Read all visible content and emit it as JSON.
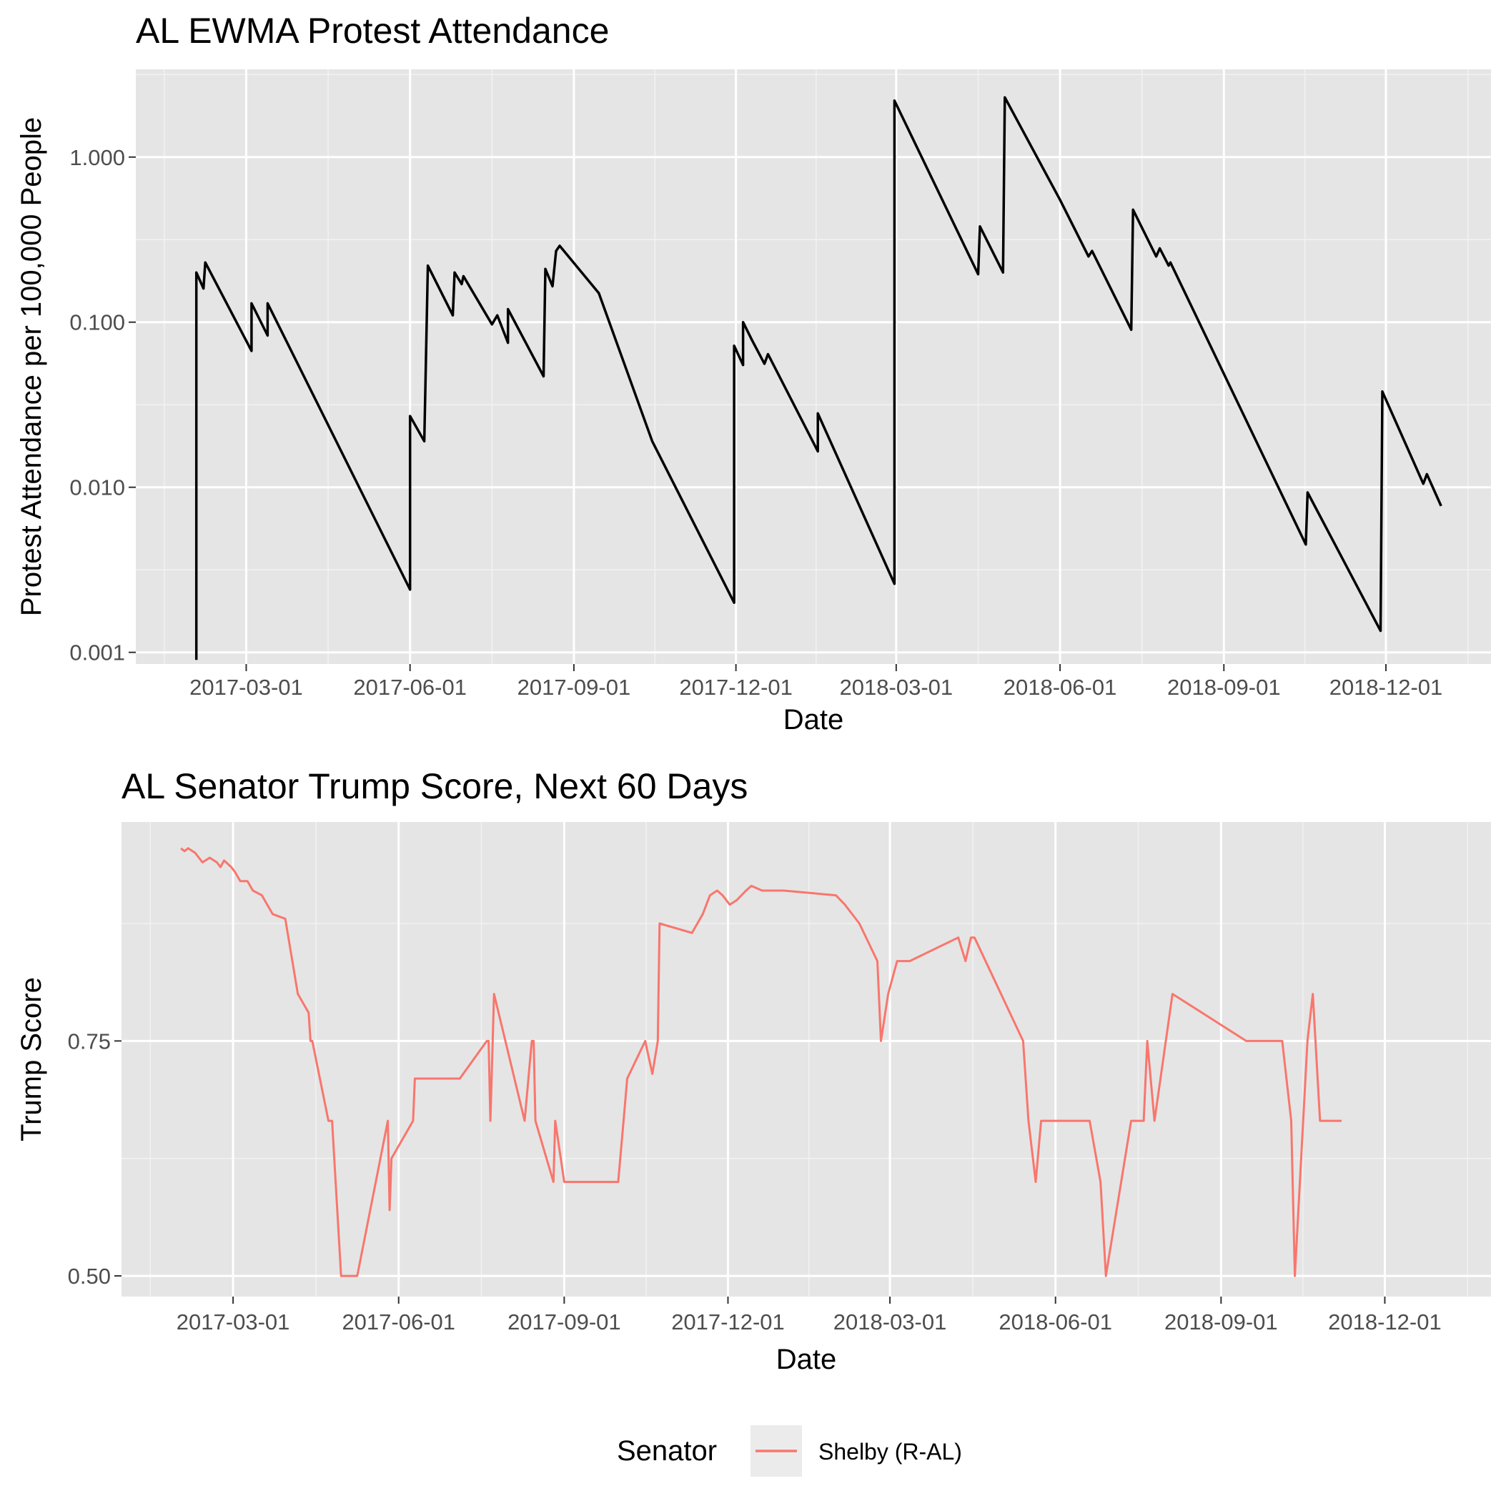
{
  "chart_data": [
    {
      "type": "line",
      "title": "AL EWMA Protest Attendance",
      "xlabel": "Date",
      "ylabel": "Protest Attendance per 100,000 People",
      "y_scale": "log10",
      "ylim": [
        0.00085,
        3.4
      ],
      "xlim": [
        "2016-12-29",
        "2019-01-29"
      ],
      "grid": true,
      "x_ticks": [
        "2017-03-01",
        "2017-06-01",
        "2017-09-01",
        "2017-12-01",
        "2018-03-01",
        "2018-06-01",
        "2018-09-01",
        "2018-12-01"
      ],
      "y_ticks": [
        {
          "value": 0.001,
          "label": "0.001"
        },
        {
          "value": 0.01,
          "label": "0.010"
        },
        {
          "value": 0.1,
          "label": "0.100"
        },
        {
          "value": 1,
          "label": "1.000"
        }
      ],
      "color": "#000000",
      "series": [
        {
          "x": [
            "2017-02-01",
            "2017-02-01",
            "2017-02-05",
            "2017-02-06",
            "2017-03-04",
            "2017-03-04",
            "2017-03-13",
            "2017-03-13",
            "2017-06-01",
            "2017-06-01",
            "2017-06-09",
            "2017-06-11",
            "2017-06-25",
            "2017-06-26",
            "2017-06-30",
            "2017-07-01",
            "2017-07-17",
            "2017-07-20",
            "2017-07-26",
            "2017-07-26",
            "2017-08-15",
            "2017-08-16",
            "2017-08-20",
            "2017-08-22",
            "2017-08-24",
            "2017-09-15",
            "2017-10-15",
            "2017-11-30",
            "2017-11-30",
            "2017-12-05",
            "2017-12-05",
            "2017-12-10",
            "2017-12-17",
            "2017-12-19",
            "2018-01-16",
            "2018-01-16",
            "2018-02-28",
            "2018-02-28",
            "2018-04-16",
            "2018-04-17",
            "2018-04-30",
            "2018-05-01",
            "2018-06-01",
            "2018-06-17",
            "2018-06-19",
            "2018-07-11",
            "2018-07-12",
            "2018-07-25",
            "2018-07-27",
            "2018-08-01",
            "2018-08-02",
            "2018-10-17",
            "2018-10-18",
            "2018-11-28",
            "2018-11-29",
            "2018-12-22",
            "2018-12-24",
            "2019-01-01"
          ],
          "y": [
            0.0009,
            0.2,
            0.16,
            0.23,
            0.067,
            0.13,
            0.083,
            0.13,
            0.0024,
            0.027,
            0.019,
            0.22,
            0.11,
            0.2,
            0.17,
            0.19,
            0.097,
            0.11,
            0.075,
            0.12,
            0.047,
            0.21,
            0.165,
            0.27,
            0.29,
            0.15,
            0.019,
            0.002,
            0.072,
            0.055,
            0.1,
            0.078,
            0.056,
            0.064,
            0.0165,
            0.028,
            0.0026,
            2.2,
            0.195,
            0.38,
            0.2,
            2.3,
            0.55,
            0.25,
            0.27,
            0.09,
            0.48,
            0.25,
            0.28,
            0.22,
            0.23,
            0.0045,
            0.0093,
            0.00135,
            0.038,
            0.0105,
            0.012,
            0.0077
          ]
        }
      ]
    },
    {
      "type": "line",
      "title": "AL Senator Trump Score, Next 60 Days",
      "xlabel": "Date",
      "ylabel": "Trump Score",
      "ylim": [
        0.478,
        0.983
      ],
      "xlim": [
        "2016-12-29",
        "2019-01-29"
      ],
      "grid": true,
      "x_ticks": [
        "2017-03-01",
        "2017-06-01",
        "2017-09-01",
        "2017-12-01",
        "2018-03-01",
        "2018-06-01",
        "2018-09-01",
        "2018-12-01"
      ],
      "y_ticks": [
        {
          "value": 0.5,
          "label": "0.50"
        },
        {
          "value": 0.75,
          "label": "0.75"
        }
      ],
      "legend": {
        "title": "Senator",
        "position": "bottom"
      },
      "series": [
        {
          "name": "Shelby (R-AL)",
          "color": "#F8766D",
          "x": [
            "2017-01-31",
            "2017-02-02",
            "2017-02-04",
            "2017-02-08",
            "2017-02-10",
            "2017-02-12",
            "2017-02-16",
            "2017-02-20",
            "2017-02-22",
            "2017-02-24",
            "2017-02-28",
            "2017-03-02",
            "2017-03-05",
            "2017-03-09",
            "2017-03-12",
            "2017-03-17",
            "2017-03-23",
            "2017-03-30",
            "2017-04-06",
            "2017-04-12",
            "2017-04-13",
            "2017-04-14",
            "2017-04-23",
            "2017-04-25",
            "2017-04-30",
            "2017-05-02",
            "2017-05-07",
            "2017-05-09",
            "2017-05-26",
            "2017-05-27",
            "2017-05-28",
            "2017-06-09",
            "2017-06-10",
            "2017-07-05",
            "2017-07-20",
            "2017-07-21",
            "2017-07-22",
            "2017-07-24",
            "2017-08-10",
            "2017-08-14",
            "2017-08-15",
            "2017-08-16",
            "2017-08-26",
            "2017-08-27",
            "2017-09-01",
            "2017-10-01",
            "2017-10-04",
            "2017-10-06",
            "2017-10-16",
            "2017-10-20",
            "2017-10-23",
            "2017-10-24",
            "2017-11-11",
            "2017-11-14",
            "2017-11-17",
            "2017-11-21",
            "2017-11-25",
            "2017-11-28",
            "2017-12-02",
            "2017-12-06",
            "2017-12-11",
            "2017-12-14",
            "2017-12-20",
            "2018-01-01",
            "2018-01-30",
            "2018-02-04",
            "2018-02-08",
            "2018-02-12",
            "2018-02-22",
            "2018-02-24",
            "2018-02-28",
            "2018-03-05",
            "2018-03-12",
            "2018-04-08",
            "2018-04-12",
            "2018-04-15",
            "2018-04-17",
            "2018-05-14",
            "2018-05-17",
            "2018-05-21",
            "2018-05-24",
            "2018-06-20",
            "2018-06-26",
            "2018-06-29",
            "2018-07-13",
            "2018-07-20",
            "2018-07-22",
            "2018-07-26",
            "2018-08-05",
            "2018-09-15",
            "2018-10-03",
            "2018-10-05",
            "2018-10-10",
            "2018-10-12",
            "2018-10-19",
            "2018-10-22",
            "2018-10-26",
            "2018-11-07"
          ],
          "y": [
            0.955,
            0.952,
            0.955,
            0.95,
            0.945,
            0.94,
            0.945,
            0.94,
            0.935,
            0.942,
            0.935,
            0.93,
            0.92,
            0.92,
            0.91,
            0.905,
            0.885,
            0.88,
            0.8,
            0.78,
            0.75,
            0.75,
            0.665,
            0.665,
            0.5,
            0.5,
            0.5,
            0.5,
            0.665,
            0.57,
            0.625,
            0.665,
            0.71,
            0.71,
            0.75,
            0.75,
            0.665,
            0.8,
            0.665,
            0.75,
            0.75,
            0.665,
            0.6,
            0.665,
            0.6,
            0.6,
            0.665,
            0.71,
            0.75,
            0.715,
            0.75,
            0.875,
            0.865,
            0.875,
            0.885,
            0.905,
            0.91,
            0.905,
            0.895,
            0.9,
            0.91,
            0.915,
            0.91,
            0.91,
            0.905,
            0.895,
            0.885,
            0.875,
            0.835,
            0.75,
            0.8,
            0.835,
            0.835,
            0.86,
            0.835,
            0.86,
            0.86,
            0.75,
            0.665,
            0.6,
            0.665,
            0.665,
            0.6,
            0.5,
            0.665,
            0.665,
            0.75,
            0.665,
            0.8,
            0.75,
            0.75,
            0.75,
            0.665,
            0.5,
            0.75,
            0.8,
            0.665,
            0.665
          ]
        }
      ]
    }
  ]
}
